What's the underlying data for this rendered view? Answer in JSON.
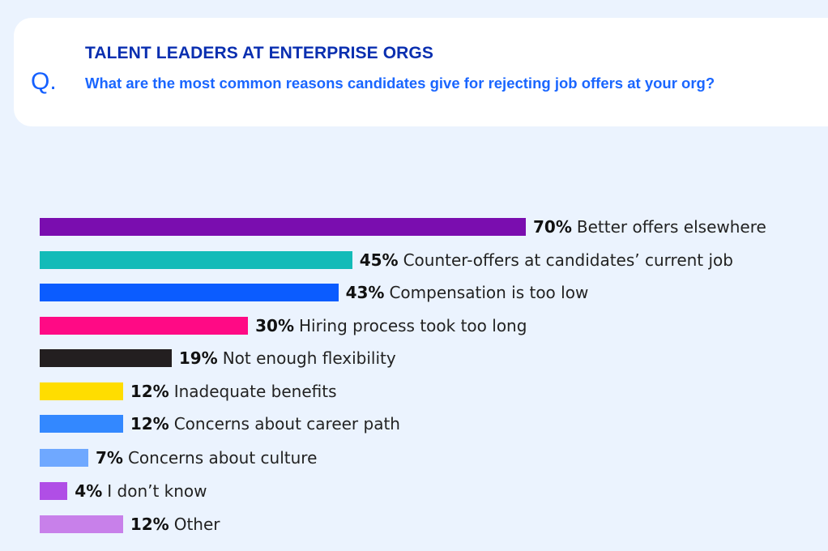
{
  "header": {
    "q_mark": "Q.",
    "kicker": "TALENT LEADERS AT ENTERPRISE ORGS",
    "question": "What are the most common reasons candidates give for rejecting job offers at your org?"
  },
  "chart_data": {
    "type": "bar",
    "orientation": "horizontal",
    "grid": false,
    "categories": [
      "Better offers elsewhere",
      "Counter-offers at candidates’ current job",
      "Compensation is too low",
      "Hiring process took too long",
      "Not enough flexibility",
      "Inadequate benefits",
      "Concerns about career path",
      "Concerns about culture",
      "I don’t know",
      "Other"
    ],
    "values": [
      70,
      45,
      43,
      30,
      19,
      12,
      12,
      7,
      4,
      12
    ],
    "labels": [
      "70%",
      "45%",
      "43%",
      "30%",
      "19%",
      "12%",
      "12%",
      "7%",
      "4%",
      "12%"
    ],
    "colors": [
      "#7a0daf",
      "#13bbb8",
      "#0b5cff",
      "#ff0a85",
      "#231f20",
      "#ffdd00",
      "#3388ff",
      "#6fa8ff",
      "#b04ee6",
      "#c880ea"
    ],
    "xlim": [
      0,
      70
    ]
  }
}
